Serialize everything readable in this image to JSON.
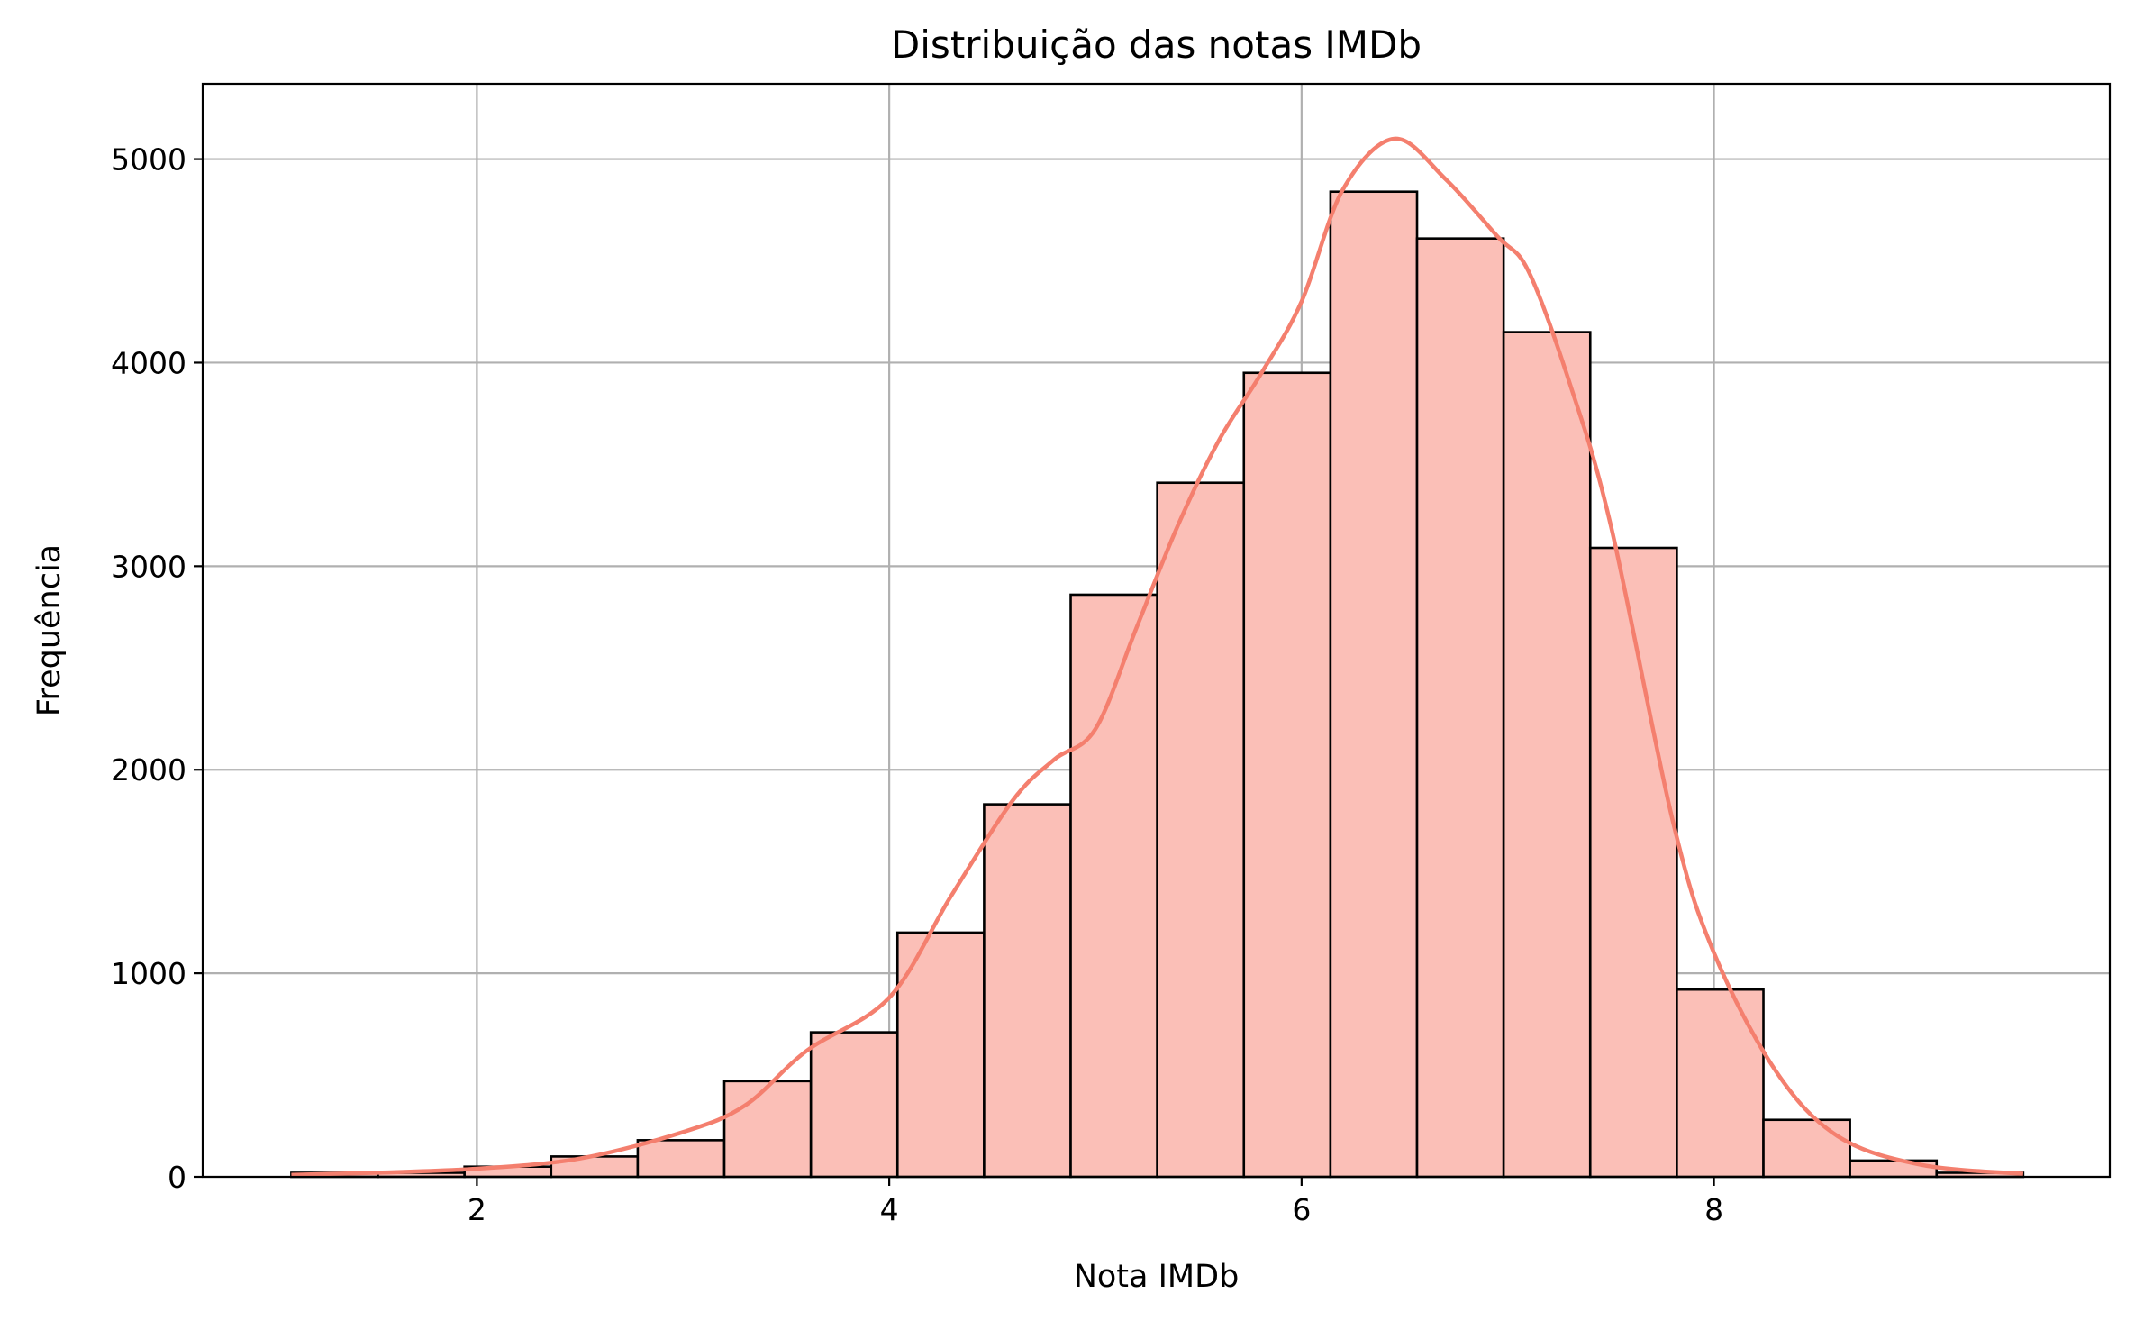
{
  "chart_data": {
    "type": "bar",
    "title": "Distribuição das notas IMDb",
    "xlabel": "Nota IMDb",
    "ylabel": "Frequência",
    "xlim": [
      0.67,
      9.92
    ],
    "ylim": [
      0,
      5370
    ],
    "xticks": [
      2,
      4,
      6,
      8
    ],
    "yticks": [
      0,
      1000,
      2000,
      3000,
      4000,
      5000
    ],
    "grid": true,
    "bar_color": "#fbbfb7",
    "bar_edge_color": "#000000",
    "kde_color": "#f47f6e",
    "grid_color": "#b0b0b0",
    "bins": [
      {
        "x0": 1.1,
        "x1": 1.52,
        "value": 20
      },
      {
        "x0": 1.52,
        "x1": 1.94,
        "value": 20
      },
      {
        "x0": 1.94,
        "x1": 2.36,
        "value": 50
      },
      {
        "x0": 2.36,
        "x1": 2.78,
        "value": 100
      },
      {
        "x0": 2.78,
        "x1": 3.2,
        "value": 180
      },
      {
        "x0": 3.2,
        "x1": 3.62,
        "value": 470
      },
      {
        "x0": 3.62,
        "x1": 4.04,
        "value": 710
      },
      {
        "x0": 4.04,
        "x1": 4.46,
        "value": 1200
      },
      {
        "x0": 4.46,
        "x1": 4.88,
        "value": 1830
      },
      {
        "x0": 4.88,
        "x1": 5.3,
        "value": 2860
      },
      {
        "x0": 5.3,
        "x1": 5.72,
        "value": 3410
      },
      {
        "x0": 5.72,
        "x1": 6.14,
        "value": 3950
      },
      {
        "x0": 6.14,
        "x1": 6.56,
        "value": 4840
      },
      {
        "x0": 6.56,
        "x1": 6.98,
        "value": 4610
      },
      {
        "x0": 6.98,
        "x1": 7.4,
        "value": 4150
      },
      {
        "x0": 7.4,
        "x1": 7.82,
        "value": 3090
      },
      {
        "x0": 7.82,
        "x1": 8.24,
        "value": 920
      },
      {
        "x0": 8.24,
        "x1": 8.66,
        "value": 280
      },
      {
        "x0": 8.66,
        "x1": 9.08,
        "value": 80
      },
      {
        "x0": 9.08,
        "x1": 9.5,
        "value": 20
      }
    ],
    "kde": {
      "x": [
        1.1,
        1.5,
        2.0,
        2.5,
        3.0,
        3.3,
        3.6,
        4.0,
        4.3,
        4.6,
        4.8,
        5.0,
        5.2,
        5.4,
        5.6,
        5.8,
        6.0,
        6.2,
        6.45,
        6.7,
        6.95,
        7.1,
        7.3,
        7.5,
        7.8,
        8.0,
        8.3,
        8.6,
        9.0,
        9.5
      ],
      "y": [
        10,
        20,
        40,
        90,
        220,
        350,
        620,
        880,
        1380,
        1850,
        2050,
        2200,
        2700,
        3200,
        3620,
        3940,
        4300,
        4850,
        5100,
        4900,
        4620,
        4450,
        3900,
        3200,
        1750,
        1100,
        520,
        200,
        60,
        15
      ]
    }
  }
}
